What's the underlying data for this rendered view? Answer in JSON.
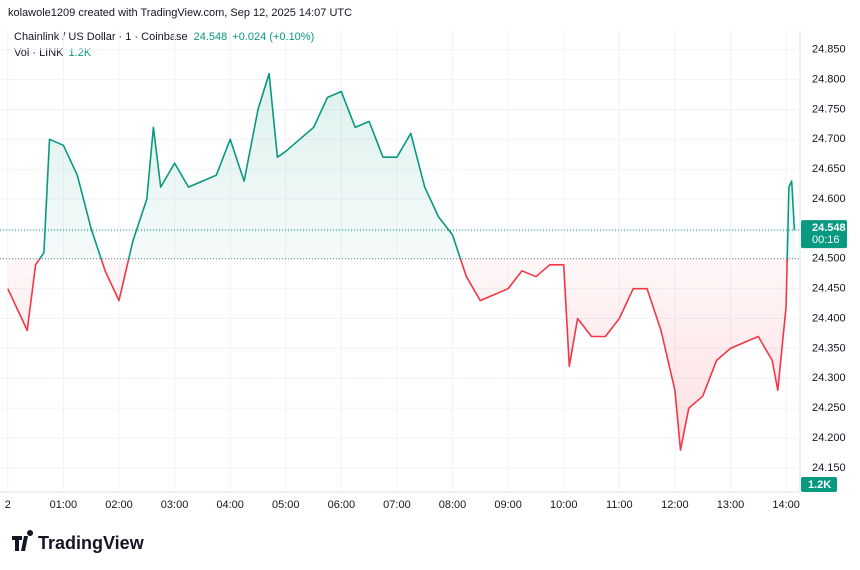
{
  "header": {
    "credit": "kolawole1209 created with TradingView.com, Sep 12, 2025 14:07 UTC",
    "symbol": "Chainlink / US Dollar · 1 · Coinbase",
    "price": 24.548,
    "change": "+0.024 (+0.10%)",
    "volume_label": "Vol · LINK",
    "volume": "1.2K"
  },
  "chart_data": {
    "type": "baseline",
    "x": [
      0,
      0.25,
      0.35,
      0.5,
      0.65,
      0.75,
      1,
      1.25,
      1.5,
      1.75,
      2,
      2.25,
      2.5,
      2.62,
      2.75,
      3,
      3.25,
      3.5,
      3.75,
      4,
      4.25,
      4.5,
      4.7,
      4.85,
      5,
      5.25,
      5.5,
      5.75,
      6,
      6.25,
      6.5,
      6.75,
      7,
      7.25,
      7.5,
      7.75,
      8,
      8.25,
      8.5,
      8.75,
      9,
      9.25,
      9.5,
      9.75,
      10,
      10.1,
      10.25,
      10.5,
      10.75,
      11,
      11.25,
      11.5,
      11.75,
      12,
      12.1,
      12.25,
      12.5,
      12.75,
      13,
      13.25,
      13.5,
      13.75,
      13.85,
      14,
      14.05,
      14.1,
      14.15
    ],
    "values": [
      24.45,
      24.4,
      24.38,
      24.49,
      24.51,
      24.7,
      24.69,
      24.64,
      24.55,
      24.48,
      24.43,
      24.53,
      24.6,
      24.72,
      24.62,
      24.66,
      24.62,
      24.63,
      24.64,
      24.7,
      24.63,
      24.75,
      24.81,
      24.67,
      24.68,
      24.7,
      24.72,
      24.77,
      24.78,
      24.72,
      24.73,
      24.67,
      24.67,
      24.71,
      24.62,
      24.57,
      24.54,
      24.47,
      24.43,
      24.44,
      24.45,
      24.48,
      24.47,
      24.49,
      24.49,
      24.32,
      24.4,
      24.37,
      24.37,
      24.4,
      24.45,
      24.45,
      24.38,
      24.28,
      24.18,
      24.25,
      24.27,
      24.33,
      24.35,
      24.36,
      24.37,
      24.33,
      24.28,
      24.42,
      24.62,
      24.63,
      24.548
    ],
    "baseline": 24.5,
    "countdown": "00:16",
    "up_color": "#089981",
    "down_color": "#f23645",
    "xlim": [
      -0.14,
      14.25
    ],
    "ylim": [
      24.113,
      24.883
    ],
    "xticks": [
      {
        "value": 0,
        "label": "2"
      },
      {
        "value": 1,
        "label": "01:00"
      },
      {
        "value": 2,
        "label": "02:00"
      },
      {
        "value": 3,
        "label": "03:00"
      },
      {
        "value": 4,
        "label": "04:00"
      },
      {
        "value": 5,
        "label": "05:00"
      },
      {
        "value": 6,
        "label": "06:00"
      },
      {
        "value": 7,
        "label": "07:00"
      },
      {
        "value": 8,
        "label": "08:00"
      },
      {
        "value": 9,
        "label": "09:00"
      },
      {
        "value": 10,
        "label": "10:00"
      },
      {
        "value": 11,
        "label": "11:00"
      },
      {
        "value": 12,
        "label": "12:00"
      },
      {
        "value": 13,
        "label": "13:00"
      },
      {
        "value": 14,
        "label": "14:00"
      }
    ],
    "yticks": [
      {
        "value": 24.15,
        "label": "24.150"
      },
      {
        "value": 24.2,
        "label": "24.200"
      },
      {
        "value": 24.25,
        "label": "24.250"
      },
      {
        "value": 24.3,
        "label": "24.300"
      },
      {
        "value": 24.35,
        "label": "24.350"
      },
      {
        "value": 24.4,
        "label": "24.400"
      },
      {
        "value": 24.45,
        "label": "24.450"
      },
      {
        "value": 24.5,
        "label": "24.500"
      },
      {
        "value": 24.55,
        "label": "24.550"
      },
      {
        "value": 24.6,
        "label": "24.600"
      },
      {
        "value": 24.65,
        "label": "24.650"
      },
      {
        "value": 24.7,
        "label": "24.700"
      },
      {
        "value": 24.75,
        "label": "24.750"
      },
      {
        "value": 24.8,
        "label": "24.800"
      },
      {
        "value": 24.85,
        "label": "24.850"
      }
    ]
  },
  "logo": "TradingView"
}
